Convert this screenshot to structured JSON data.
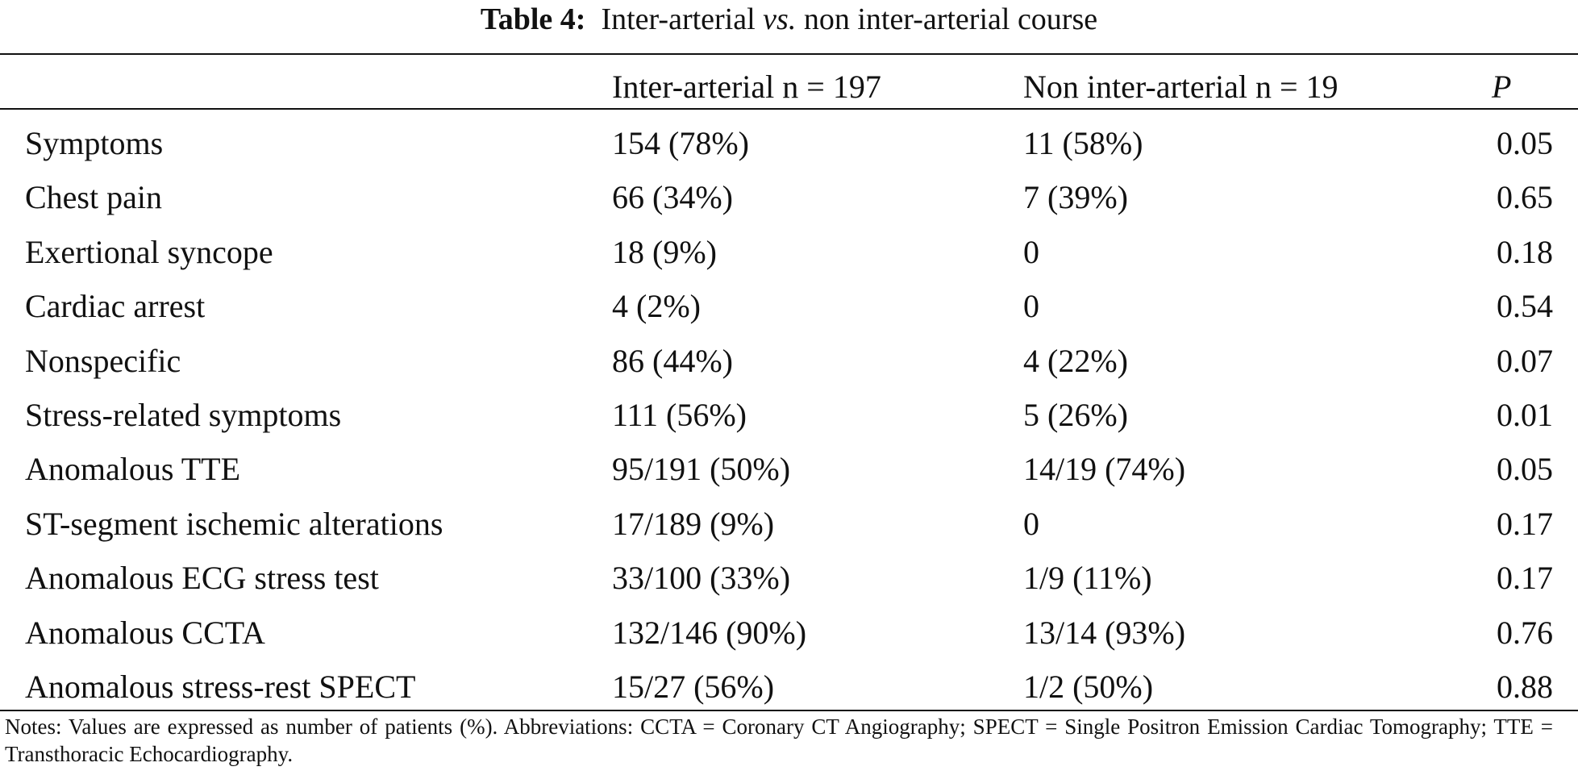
{
  "title": {
    "label": "Table 4:",
    "parts": [
      "Inter-arterial",
      "vs.",
      "non inter-arterial course"
    ]
  },
  "table": {
    "header": [
      "Inter-arterial n = 197",
      "Non inter-arterial n = 19",
      "P"
    ],
    "rows": [
      [
        "Symptoms",
        "154 (78%)",
        "11 (58%)",
        "0.05"
      ],
      [
        "Chest pain",
        "66 (34%)",
        "7 (39%)",
        "0.65"
      ],
      [
        "Exertional syncope",
        "18 (9%)",
        "0",
        "0.18"
      ],
      [
        "Cardiac arrest",
        "4 (2%)",
        "0",
        "0.54"
      ],
      [
        "Nonspecific",
        "86 (44%)",
        "4 (22%)",
        "0.07"
      ],
      [
        "Stress-related symptoms",
        "111 (56%)",
        "5 (26%)",
        "0.01"
      ],
      [
        "Anomalous TTE",
        "95/191 (50%)",
        "14/19 (74%)",
        "0.05"
      ],
      [
        "ST-segment ischemic alterations",
        "17/189 (9%)",
        "0",
        "0.17"
      ],
      [
        "Anomalous ECG stress test",
        "33/100 (33%)",
        "1/9 (11%)",
        "0.17"
      ],
      [
        "Anomalous CCTA",
        "132/146 (90%)",
        "13/14 (93%)",
        "0.76"
      ],
      [
        "Anomalous stress-rest SPECT",
        "15/27 (56%)",
        "1/2 (50%)",
        "0.88"
      ]
    ]
  },
  "notes": "Notes: Values are expressed as number of patients (%). Abbreviations: CCTA = Coronary CT Angiography; SPECT = Single Positron Emission Cardiac Tomography; TTE = Transthoracic Echocardiography."
}
